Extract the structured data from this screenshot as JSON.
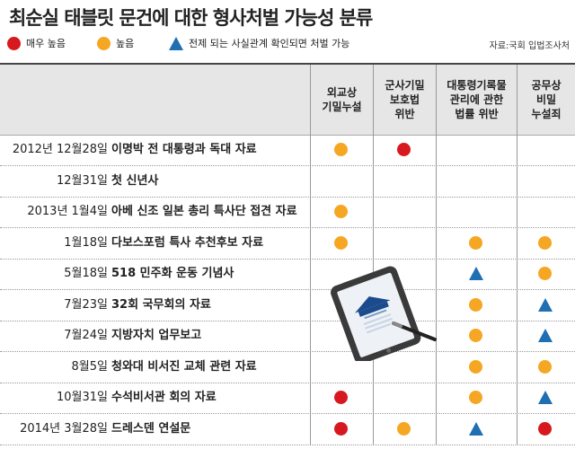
{
  "title": "최순실 태블릿 문건에 대한 형사처벌 가능성 분류",
  "legend": {
    "very_high": "매우 높음",
    "high": "높음",
    "conditional": "전제 되는 사실관계 확인되면 처벌 가능",
    "source": "자료:국회 입법조사처"
  },
  "colors": {
    "very_high": "#d7191f",
    "high": "#f5a623",
    "conditional": "#1f6fb2"
  },
  "columns": [
    "외교상\n기밀누설",
    "군사기밀\n보호법\n위반",
    "대통령기록물\n관리에 관한\n법률 위반",
    "공무상\n비밀\n누설죄"
  ],
  "rows": [
    {
      "date": "2012년 12월28일",
      "doc": "이명박 전 대통령과 독대 자료",
      "marks": [
        "high",
        "very_high",
        "",
        ""
      ]
    },
    {
      "date": "12월31일",
      "doc": "첫 신년사",
      "marks": [
        "",
        "",
        "",
        ""
      ]
    },
    {
      "date": "2013년 1월4일",
      "doc": "아베 신조 일본 총리 특사단 접견 자료",
      "marks": [
        "high",
        "",
        "",
        ""
      ]
    },
    {
      "date": "1월18일",
      "doc": "다보스포럼 특사 추천후보 자료",
      "marks": [
        "high",
        "",
        "high",
        "high"
      ]
    },
    {
      "date": "5월18일",
      "doc": "518 민주화 운동 기념사",
      "marks": [
        "",
        "",
        "conditional",
        "high"
      ]
    },
    {
      "date": "7월23일",
      "doc": "32회 국무회의 자료",
      "marks": [
        "",
        "",
        "high",
        "conditional"
      ]
    },
    {
      "date": "7월24일",
      "doc": "지방자치 업무보고",
      "marks": [
        "",
        "",
        "high",
        "conditional"
      ]
    },
    {
      "date": "8월5일",
      "doc": "청와대 비서진 교체 관련 자료",
      "marks": [
        "",
        "",
        "high",
        "high"
      ]
    },
    {
      "date": "10월31일",
      "doc": "수석비서관 회의 자료",
      "marks": [
        "very_high",
        "",
        "high",
        "conditional"
      ]
    },
    {
      "date": "2014년 3월28일",
      "doc": "드레스덴 연설문",
      "marks": [
        "very_high",
        "high",
        "conditional",
        "very_high"
      ]
    }
  ]
}
